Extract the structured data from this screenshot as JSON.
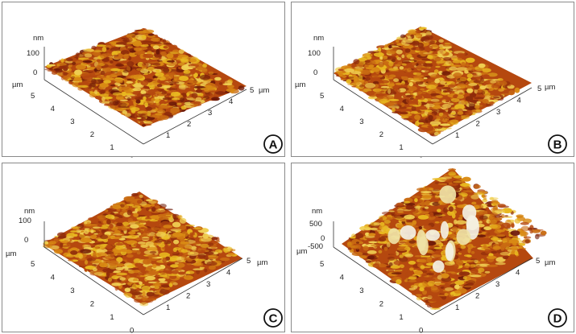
{
  "panels": [
    {
      "id": "A",
      "badge": "A",
      "z_unit": "nm",
      "z_ticks": [
        "100",
        "0"
      ],
      "xy_unit_left": "µm",
      "xy_unit_right": "µm",
      "left_axis_ticks": [
        "5",
        "4",
        "3",
        "2",
        "1",
        "0"
      ],
      "right_axis_ticks": [
        "1",
        "2",
        "3",
        "4",
        "5"
      ]
    },
    {
      "id": "B",
      "badge": "B",
      "z_unit": "nm",
      "z_ticks": [
        "100",
        "0"
      ],
      "xy_unit_left": "µm",
      "xy_unit_right": "µm",
      "left_axis_ticks": [
        "5",
        "4",
        "3",
        "2",
        "1",
        "0"
      ],
      "right_axis_ticks": [
        "1",
        "2",
        "3",
        "4",
        "5"
      ]
    },
    {
      "id": "C",
      "badge": "C",
      "z_unit": "nm",
      "z_ticks": [
        "100",
        "0"
      ],
      "xy_unit_left": "µm",
      "xy_unit_right": "µm",
      "left_axis_ticks": [
        "5",
        "4",
        "3",
        "2",
        "1",
        "0"
      ],
      "right_axis_ticks": [
        "1",
        "2",
        "3",
        "4",
        "5"
      ]
    },
    {
      "id": "D",
      "badge": "D",
      "z_unit": "nm",
      "z_ticks": [
        "500",
        "0",
        "-500"
      ],
      "xy_unit_left": "µm",
      "xy_unit_right": "µm",
      "left_axis_ticks": [
        "5",
        "4",
        "3",
        "2",
        "1",
        "0"
      ],
      "right_axis_ticks": [
        "1",
        "2",
        "3",
        "4",
        "5"
      ]
    }
  ],
  "colors": {
    "dark": "#5a1208",
    "mid": "#b5480f",
    "orange": "#d98a14",
    "gold": "#e8b820",
    "light": "#f3dc80",
    "white": "#f4f1e4"
  }
}
